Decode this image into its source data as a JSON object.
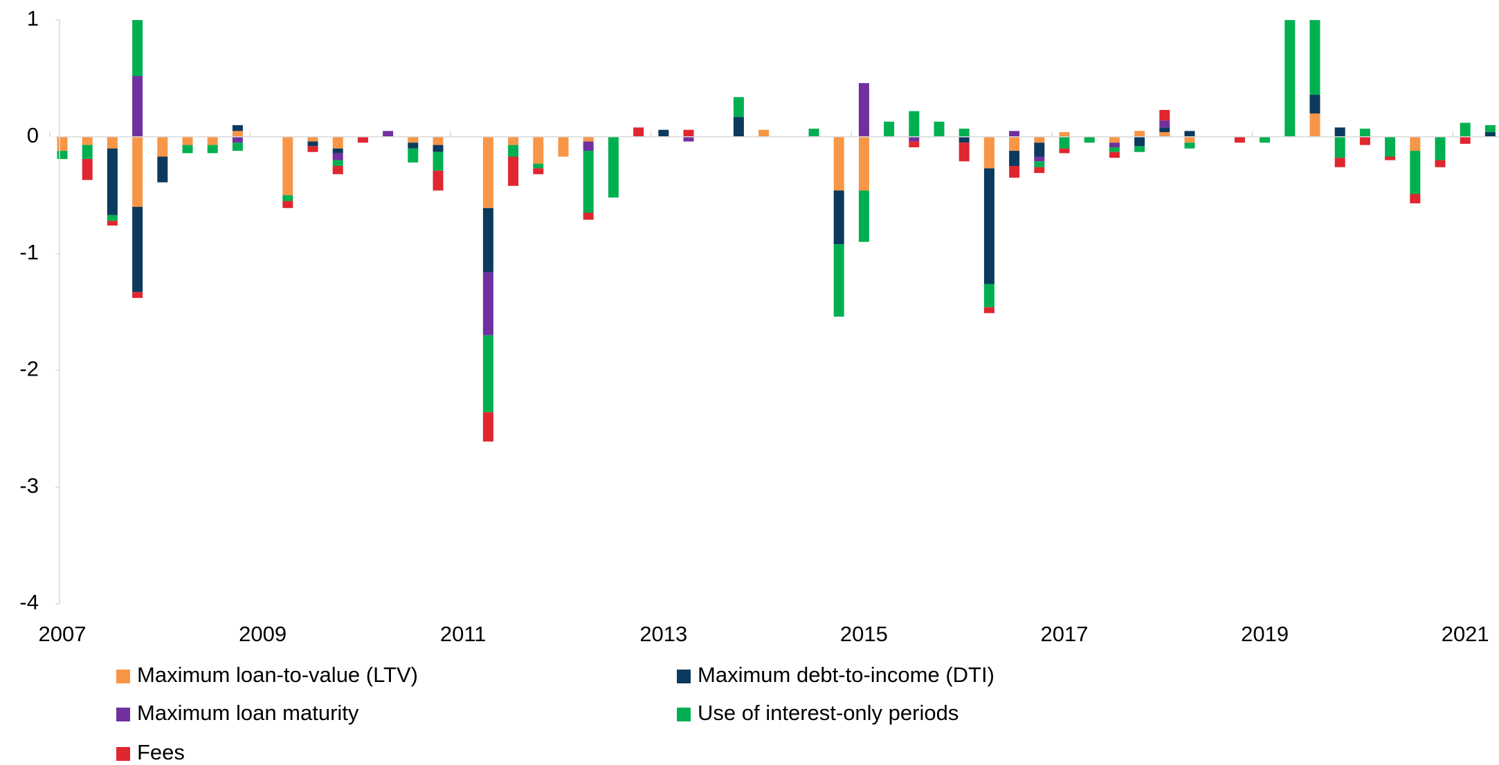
{
  "chart_data": {
    "type": "stacked_bar",
    "categories": [
      "2007",
      null,
      null,
      null,
      null,
      null,
      null,
      null,
      "2009",
      null,
      null,
      null,
      null,
      null,
      null,
      null,
      "2011",
      null,
      null,
      null,
      null,
      null,
      null,
      null,
      "2013",
      null,
      null,
      null,
      null,
      null,
      null,
      null,
      "2015",
      null,
      null,
      null,
      null,
      null,
      null,
      null,
      "2017",
      null,
      null,
      null,
      null,
      null,
      null,
      null,
      "2019",
      null,
      null,
      null,
      null,
      null,
      null,
      null,
      "2021",
      null
    ],
    "series": [
      {
        "name": "Maximum loan-to-value (LTV)",
        "color": "#F79646",
        "values": [
          -0.12,
          -0.07,
          -0.1,
          -0.6,
          -0.17,
          -0.07,
          -0.07,
          0.05,
          0,
          -0.5,
          -0.04,
          -0.1,
          0,
          0,
          -0.05,
          -0.07,
          0,
          -0.61,
          -0.07,
          -0.23,
          -0.17,
          -0.04,
          0,
          0,
          0,
          0,
          0,
          0,
          0.06,
          0,
          0,
          -0.46,
          -0.46,
          0,
          0,
          0,
          0,
          -0.27,
          -0.12,
          -0.05,
          0.04,
          0,
          -0.05,
          0.05,
          0.04,
          -0.05,
          0,
          0,
          0,
          0,
          0.2,
          0,
          0,
          0,
          -0.12,
          0,
          0,
          0
        ]
      },
      {
        "name": "Maximum debt-to-income (DTI)",
        "color": "#0B3A5E",
        "values": [
          0,
          0,
          -0.57,
          -0.73,
          -0.22,
          0,
          0,
          0.05,
          0,
          0,
          -0.04,
          -0.04,
          0,
          0,
          -0.05,
          -0.06,
          0,
          -0.55,
          0,
          0,
          0,
          0,
          0,
          0,
          0.06,
          0,
          0,
          0.17,
          0,
          0,
          0,
          -0.46,
          0,
          0,
          0,
          0,
          -0.05,
          -0.99,
          -0.13,
          -0.12,
          0,
          0,
          0,
          -0.08,
          0.04,
          0.05,
          0,
          0,
          0,
          0,
          0.16,
          0.08,
          0,
          0,
          0,
          0,
          0,
          0.04
        ]
      },
      {
        "name": "Maximum loan maturity",
        "color": "#7030A0",
        "values": [
          0,
          0,
          0,
          0.52,
          0,
          0,
          0,
          -0.05,
          0,
          0,
          0,
          -0.06,
          0,
          0.05,
          0,
          0,
          0,
          -0.54,
          0,
          0,
          0,
          -0.08,
          0,
          0,
          0,
          -0.04,
          0,
          0,
          0,
          0,
          0,
          0,
          0.46,
          0,
          -0.04,
          0,
          0,
          0,
          0.05,
          -0.04,
          0,
          0,
          -0.04,
          0,
          0.06,
          0,
          0,
          0,
          0,
          0,
          0,
          0,
          0,
          0,
          0,
          0,
          0,
          0
        ]
      },
      {
        "name": "Use of interest-only periods",
        "color": "#00B050",
        "values": [
          -0.07,
          -0.12,
          -0.05,
          0.48,
          0,
          -0.07,
          -0.07,
          -0.07,
          0,
          -0.05,
          0,
          -0.05,
          0,
          0,
          -0.12,
          -0.16,
          0,
          -0.66,
          -0.1,
          -0.04,
          0,
          -0.53,
          -0.52,
          0,
          0,
          0,
          0,
          0.17,
          0,
          0,
          0.07,
          -0.62,
          -0.44,
          0.13,
          0.22,
          0.13,
          0.07,
          -0.2,
          0,
          -0.05,
          -0.1,
          -0.05,
          -0.04,
          -0.05,
          0,
          -0.05,
          0,
          0,
          -0.05,
          1,
          0.64,
          -0.18,
          0.07,
          -0.17,
          -0.37,
          -0.2,
          0.12,
          0.06
        ]
      },
      {
        "name": "Fees",
        "color": "#E0262F",
        "values": [
          0,
          -0.18,
          -0.04,
          -0.05,
          0,
          0,
          0,
          0,
          0,
          -0.06,
          -0.05,
          -0.07,
          -0.05,
          0,
          0,
          -0.17,
          0,
          -0.25,
          -0.25,
          -0.05,
          0,
          -0.06,
          0,
          0.08,
          0,
          0.06,
          0,
          0,
          0,
          0,
          0,
          0,
          0,
          0,
          -0.05,
          0,
          -0.16,
          -0.05,
          -0.1,
          -0.05,
          -0.04,
          0,
          -0.05,
          0,
          0.09,
          0,
          0,
          -0.05,
          0,
          0,
          0,
          -0.08,
          -0.07,
          -0.03,
          -0.08,
          -0.06,
          -0.06,
          0
        ]
      }
    ],
    "ylim": [
      -4,
      1
    ],
    "yticks": [
      1,
      0,
      -1,
      -2,
      -3,
      -4
    ]
  }
}
